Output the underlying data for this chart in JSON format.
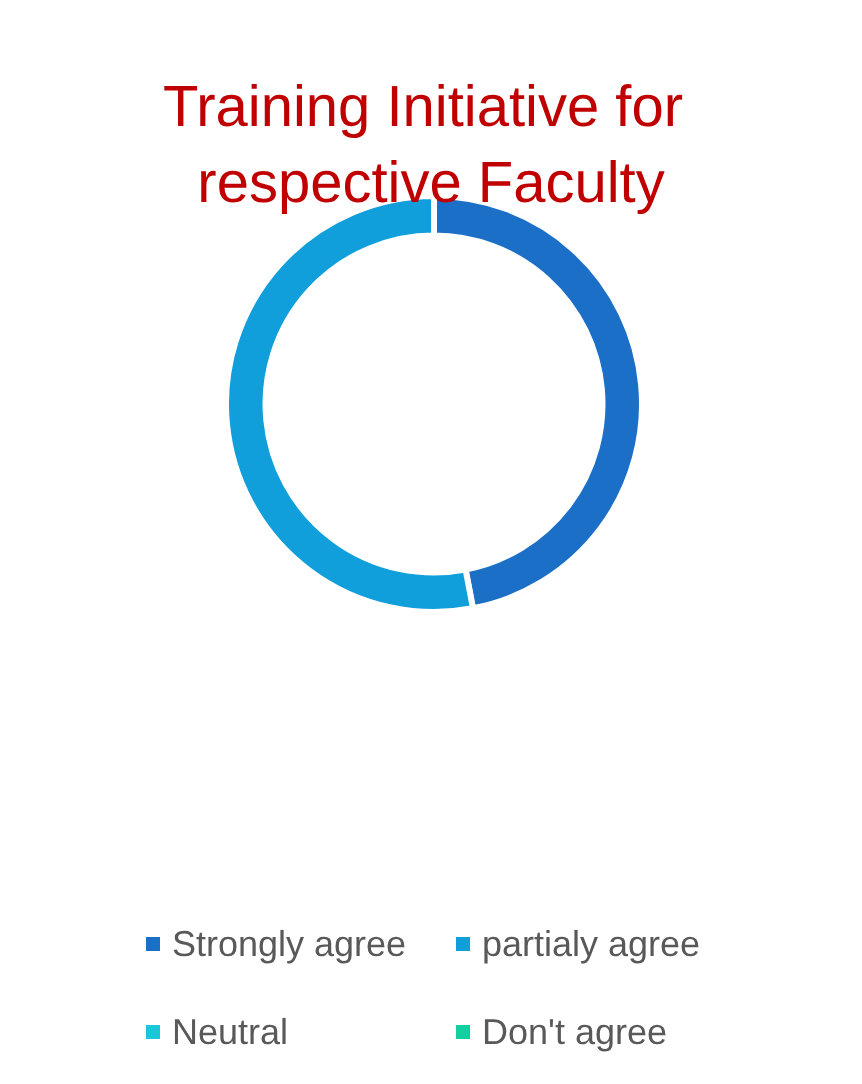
{
  "chart_data": {
    "type": "donut",
    "title": "Training Initiative for respective Faculty",
    "categories": [
      "Strongly agree",
      "partialy agree",
      "Neutral",
      "Don't agree"
    ],
    "values": [
      47,
      53,
      0,
      0
    ],
    "colors": [
      "#1c6fc7",
      "#119fdb",
      "#19c8d8",
      "#12cf9f"
    ],
    "legend": "bottom"
  }
}
